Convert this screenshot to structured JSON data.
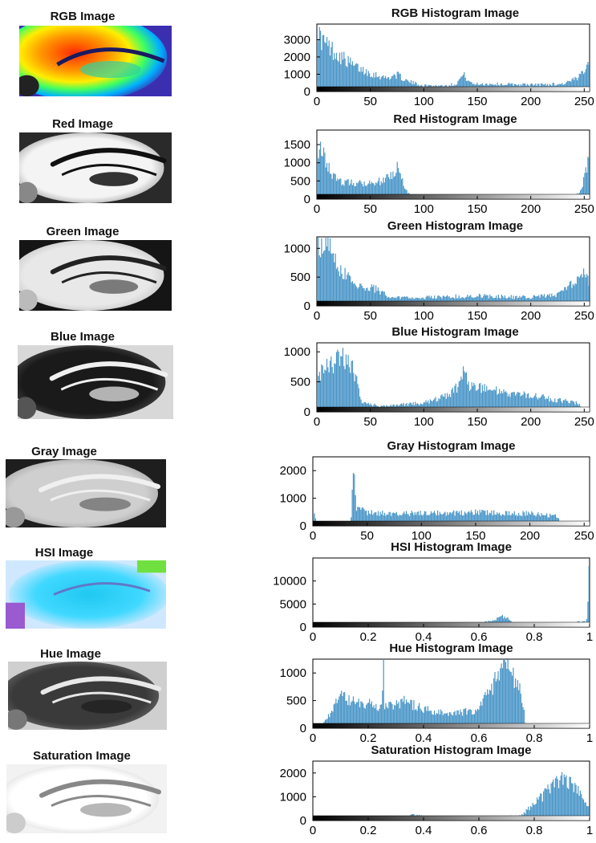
{
  "colors": {
    "bar": "#4a96c8",
    "axis": "#000000"
  },
  "thumbnails": [
    {
      "title": "RGB Image",
      "kind": "rgb-heatmap"
    },
    {
      "title": "Red Image",
      "kind": "red-gray"
    },
    {
      "title": "Green Image",
      "kind": "green-gray"
    },
    {
      "title": "Blue Image",
      "kind": "blue-gray"
    },
    {
      "title": "Gray Image",
      "kind": "gray"
    },
    {
      "title": "HSI Image",
      "kind": "hsi"
    },
    {
      "title": "Hue Image",
      "kind": "hue"
    },
    {
      "title": "Saturation Image",
      "kind": "saturation"
    }
  ],
  "chart_data": [
    {
      "type": "bar",
      "title": "RGB Histogram Image",
      "xlim": [
        0,
        255
      ],
      "ylim": [
        0,
        3900
      ],
      "xticks": [
        0,
        50,
        100,
        150,
        200,
        250
      ],
      "xtick_labels": [
        "0",
        "50",
        "100",
        "150",
        "200",
        "250"
      ],
      "yticks": [
        0,
        1000,
        2000,
        3000
      ],
      "ytick_labels": [
        "0",
        "1000",
        "2000",
        "3000"
      ],
      "profile": [
        [
          0,
          3800
        ],
        [
          3,
          3200
        ],
        [
          10,
          2700
        ],
        [
          20,
          2200
        ],
        [
          35,
          1500
        ],
        [
          50,
          1100
        ],
        [
          65,
          800
        ],
        [
          75,
          1000
        ],
        [
          85,
          600
        ],
        [
          100,
          350
        ],
        [
          120,
          350
        ],
        [
          130,
          450
        ],
        [
          137,
          1000
        ],
        [
          145,
          450
        ],
        [
          160,
          450
        ],
        [
          200,
          400
        ],
        [
          230,
          450
        ],
        [
          245,
          800
        ],
        [
          255,
          2000
        ]
      ]
    },
    {
      "type": "bar",
      "title": "Red Histogram Image",
      "xlim": [
        0,
        255
      ],
      "ylim": [
        0,
        1900
      ],
      "xticks": [
        0,
        50,
        100,
        150,
        200,
        250
      ],
      "xtick_labels": [
        "0",
        "50",
        "100",
        "150",
        "200",
        "250"
      ],
      "yticks": [
        0,
        500,
        1000,
        1500
      ],
      "ytick_labels": [
        "0",
        "500",
        "1000",
        "1500"
      ],
      "profile": [
        [
          0,
          1500
        ],
        [
          5,
          1300
        ],
        [
          12,
          800
        ],
        [
          20,
          500
        ],
        [
          40,
          450
        ],
        [
          60,
          500
        ],
        [
          70,
          700
        ],
        [
          76,
          950
        ],
        [
          82,
          300
        ],
        [
          90,
          20
        ],
        [
          240,
          10
        ],
        [
          248,
          300
        ],
        [
          253,
          1000
        ],
        [
          255,
          1600
        ]
      ]
    },
    {
      "type": "bar",
      "title": "Green Histogram Image",
      "xlim": [
        0,
        255
      ],
      "ylim": [
        0,
        1200
      ],
      "xticks": [
        0,
        50,
        100,
        150,
        200,
        250
      ],
      "xtick_labels": [
        "0",
        "50",
        "100",
        "150",
        "200",
        "250"
      ],
      "yticks": [
        0,
        500,
        1000
      ],
      "ytick_labels": [
        "0",
        "500",
        "1000"
      ],
      "profile": [
        [
          0,
          1000
        ],
        [
          5,
          1150
        ],
        [
          12,
          1200
        ],
        [
          20,
          700
        ],
        [
          35,
          400
        ],
        [
          55,
          300
        ],
        [
          70,
          150
        ],
        [
          100,
          150
        ],
        [
          150,
          180
        ],
        [
          200,
          150
        ],
        [
          225,
          200
        ],
        [
          240,
          400
        ],
        [
          248,
          600
        ],
        [
          255,
          450
        ]
      ]
    },
    {
      "type": "bar",
      "title": "Blue Histogram Image",
      "xlim": [
        0,
        255
      ],
      "ylim": [
        0,
        1150
      ],
      "xticks": [
        0,
        50,
        100,
        150,
        200,
        250
      ],
      "xtick_labels": [
        "0",
        "50",
        "100",
        "150",
        "200",
        "250"
      ],
      "yticks": [
        0,
        500,
        1000
      ],
      "ytick_labels": [
        "0",
        "500",
        "1000"
      ],
      "profile": [
        [
          0,
          500
        ],
        [
          5,
          700
        ],
        [
          15,
          800
        ],
        [
          25,
          950
        ],
        [
          35,
          700
        ],
        [
          42,
          150
        ],
        [
          60,
          100
        ],
        [
          100,
          150
        ],
        [
          125,
          300
        ],
        [
          135,
          500
        ],
        [
          138,
          900
        ],
        [
          142,
          450
        ],
        [
          170,
          350
        ],
        [
          210,
          250
        ],
        [
          245,
          150
        ],
        [
          250,
          0
        ]
      ]
    },
    {
      "type": "bar",
      "title": "Gray Histogram Image",
      "xlim": [
        0,
        255
      ],
      "ylim": [
        0,
        2500
      ],
      "xticks": [
        0,
        50,
        100,
        150,
        200,
        250
      ],
      "xtick_labels": [
        "0",
        "50",
        "100",
        "150",
        "200",
        "250"
      ],
      "yticks": [
        0,
        1000,
        2000
      ],
      "ytick_labels": [
        "0",
        "1000",
        "2000"
      ],
      "profile": [
        [
          0,
          700
        ],
        [
          3,
          200
        ],
        [
          10,
          30
        ],
        [
          35,
          30
        ],
        [
          38,
          2400
        ],
        [
          40,
          700
        ],
        [
          50,
          500
        ],
        [
          80,
          450
        ],
        [
          150,
          500
        ],
        [
          200,
          450
        ],
        [
          225,
          350
        ],
        [
          230,
          0
        ],
        [
          255,
          0
        ]
      ]
    },
    {
      "type": "bar",
      "title": "HSI Histogram Image",
      "xlim": [
        0,
        1
      ],
      "ylim": [
        0,
        15000
      ],
      "xticks": [
        0,
        0.2,
        0.4,
        0.6,
        0.8,
        1
      ],
      "xtick_labels": [
        "0",
        "0.2",
        "0.4",
        "0.6",
        "0.8",
        "1"
      ],
      "yticks": [
        0,
        5000,
        10000
      ],
      "ytick_labels": [
        "0",
        "5000",
        "10000"
      ],
      "profile": [
        [
          0,
          200
        ],
        [
          0.05,
          400
        ],
        [
          0.15,
          700
        ],
        [
          0.3,
          500
        ],
        [
          0.45,
          500
        ],
        [
          0.6,
          700
        ],
        [
          0.67,
          1800
        ],
        [
          0.69,
          2500
        ],
        [
          0.72,
          1000
        ],
        [
          0.8,
          200
        ],
        [
          0.85,
          800
        ],
        [
          0.95,
          1000
        ],
        [
          0.99,
          1200
        ],
        [
          1,
          14000
        ]
      ]
    },
    {
      "type": "bar",
      "title": "Hue Histogram Image",
      "xlim": [
        0,
        1
      ],
      "ylim": [
        0,
        1250
      ],
      "xticks": [
        0,
        0.2,
        0.4,
        0.6,
        0.8,
        1
      ],
      "xtick_labels": [
        "0",
        "0.2",
        "0.4",
        "0.6",
        "0.8",
        "1"
      ],
      "yticks": [
        0,
        500,
        1000
      ],
      "ytick_labels": [
        "0",
        "500",
        "1000"
      ],
      "profile": [
        [
          0,
          0
        ],
        [
          0.03,
          50
        ],
        [
          0.07,
          300
        ],
        [
          0.1,
          700
        ],
        [
          0.13,
          500
        ],
        [
          0.2,
          450
        ],
        [
          0.25,
          400
        ],
        [
          0.255,
          1200
        ],
        [
          0.26,
          400
        ],
        [
          0.33,
          500
        ],
        [
          0.4,
          350
        ],
        [
          0.5,
          250
        ],
        [
          0.6,
          350
        ],
        [
          0.65,
          800
        ],
        [
          0.68,
          1200
        ],
        [
          0.72,
          1100
        ],
        [
          0.76,
          500
        ],
        [
          0.77,
          0
        ],
        [
          1,
          0
        ]
      ]
    },
    {
      "type": "bar",
      "title": "Saturation Histogram Image",
      "xlim": [
        0,
        1
      ],
      "ylim": [
        0,
        2500
      ],
      "xticks": [
        0,
        0.2,
        0.4,
        0.6,
        0.8,
        1
      ],
      "xtick_labels": [
        "0",
        "0.2",
        "0.4",
        "0.6",
        "0.8",
        "1"
      ],
      "yticks": [
        0,
        1000,
        2000
      ],
      "ytick_labels": [
        "0",
        "1000",
        "2000"
      ],
      "profile": [
        [
          0,
          0
        ],
        [
          0.2,
          30
        ],
        [
          0.32,
          150
        ],
        [
          0.36,
          250
        ],
        [
          0.42,
          150
        ],
        [
          0.6,
          100
        ],
        [
          0.75,
          200
        ],
        [
          0.8,
          700
        ],
        [
          0.86,
          1400
        ],
        [
          0.9,
          1800
        ],
        [
          0.95,
          1400
        ],
        [
          1,
          500
        ]
      ]
    }
  ]
}
